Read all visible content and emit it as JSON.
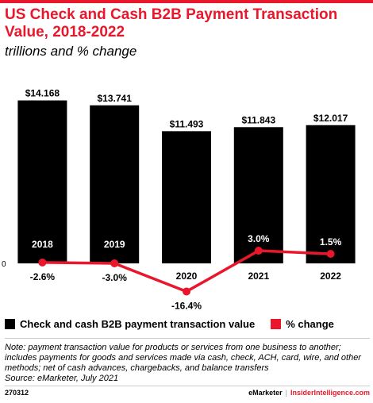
{
  "header": {
    "title": "US Check and Cash B2B Payment Transaction Value, 2018-2022",
    "subtitle": "trillions and % change"
  },
  "chart_data": {
    "type": "bar",
    "categories": [
      "2018",
      "2019",
      "2020",
      "2021",
      "2022"
    ],
    "series": [
      {
        "name": "Check and cash B2B payment transaction value",
        "type": "bar",
        "values": [
          14.168,
          13.741,
          11.493,
          11.843,
          12.017
        ],
        "labels": [
          "$14.168",
          "$13.741",
          "$11.493",
          "$11.843",
          "$12.017"
        ],
        "color": "#000000"
      },
      {
        "name": "% change",
        "type": "line",
        "values": [
          -2.6,
          -3.0,
          -16.4,
          3.0,
          1.5
        ],
        "labels": [
          "-2.6%",
          "-3.0%",
          "-16.4%",
          "3.0%",
          "1.5%"
        ],
        "color": "#e8172c"
      }
    ],
    "zero_label": "0",
    "legend_position": "bottom"
  },
  "legend": {
    "items": [
      {
        "label": "Check and cash B2B payment transaction value",
        "color": "#000000"
      },
      {
        "label": "% change",
        "color": "#e8172c"
      }
    ]
  },
  "note": "Note: payment transaction value for products or services from one business to another; includes payments for goods and services made via cash, check, ACH, card, wire, and other methods; net of cash advances, chargebacks, and balance transfers",
  "source": "Source: eMarketer, July 2021",
  "footer": {
    "chart_id": "270312",
    "brand_left": "eMarketer",
    "separator": "|",
    "brand_right": "InsiderIntelligence.com"
  },
  "colors": {
    "accent": "#e8172c",
    "bar": "#000000"
  }
}
